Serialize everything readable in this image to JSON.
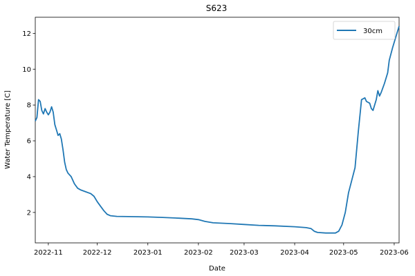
{
  "chart_data": {
    "type": "line",
    "title": "S623",
    "xlabel": "Date",
    "ylabel": "Water Temperature [C]",
    "x_ticks": [
      "2022-11",
      "2022-12",
      "2023-01",
      "2023-02",
      "2023-03",
      "2023-04",
      "2023-05",
      "2023-06"
    ],
    "x_tick_dates": [
      "2022-11-01",
      "2022-12-01",
      "2023-01-01",
      "2023-02-01",
      "2023-03-01",
      "2023-04-01",
      "2023-05-01",
      "2023-06-01"
    ],
    "y_ticks": [
      2,
      4,
      6,
      8,
      10,
      12
    ],
    "xlim": [
      "2022-10-24",
      "2023-06-04"
    ],
    "ylim": [
      0.3,
      12.9
    ],
    "grid": false,
    "legend_position": "upper right",
    "series": [
      {
        "name": "30cm",
        "color": "#1f77b4",
        "points": [
          [
            "2022-10-24",
            7.1
          ],
          [
            "2022-10-25",
            7.3
          ],
          [
            "2022-10-26",
            8.3
          ],
          [
            "2022-10-27",
            8.2
          ],
          [
            "2022-10-28",
            7.7
          ],
          [
            "2022-10-29",
            7.5
          ],
          [
            "2022-10-30",
            7.8
          ],
          [
            "2022-10-31",
            7.6
          ],
          [
            "2022-11-01",
            7.45
          ],
          [
            "2022-11-02",
            7.6
          ],
          [
            "2022-11-03",
            7.9
          ],
          [
            "2022-11-04",
            7.6
          ],
          [
            "2022-11-05",
            6.9
          ],
          [
            "2022-11-06",
            6.6
          ],
          [
            "2022-11-07",
            6.3
          ],
          [
            "2022-11-08",
            6.4
          ],
          [
            "2022-11-09",
            6.1
          ],
          [
            "2022-11-10",
            5.5
          ],
          [
            "2022-11-11",
            4.8
          ],
          [
            "2022-11-12",
            4.4
          ],
          [
            "2022-11-13",
            4.2
          ],
          [
            "2022-11-15",
            4.0
          ],
          [
            "2022-11-17",
            3.6
          ],
          [
            "2022-11-19",
            3.35
          ],
          [
            "2022-11-21",
            3.25
          ],
          [
            "2022-11-24",
            3.15
          ],
          [
            "2022-11-27",
            3.05
          ],
          [
            "2022-11-29",
            2.9
          ],
          [
            "2022-12-01",
            2.6
          ],
          [
            "2022-12-03",
            2.35
          ],
          [
            "2022-12-05",
            2.1
          ],
          [
            "2022-12-07",
            1.9
          ],
          [
            "2022-12-09",
            1.82
          ],
          [
            "2022-12-13",
            1.78
          ],
          [
            "2022-12-20",
            1.77
          ],
          [
            "2023-01-01",
            1.75
          ],
          [
            "2023-01-10",
            1.72
          ],
          [
            "2023-01-20",
            1.68
          ],
          [
            "2023-01-28",
            1.64
          ],
          [
            "2023-02-01",
            1.6
          ],
          [
            "2023-02-05",
            1.5
          ],
          [
            "2023-02-10",
            1.42
          ],
          [
            "2023-02-20",
            1.38
          ],
          [
            "2023-03-01",
            1.33
          ],
          [
            "2023-03-10",
            1.28
          ],
          [
            "2023-03-20",
            1.25
          ],
          [
            "2023-04-01",
            1.2
          ],
          [
            "2023-04-08",
            1.15
          ],
          [
            "2023-04-11",
            1.1
          ],
          [
            "2023-04-13",
            0.95
          ],
          [
            "2023-04-15",
            0.88
          ],
          [
            "2023-04-20",
            0.85
          ],
          [
            "2023-04-26",
            0.85
          ],
          [
            "2023-04-28",
            0.95
          ],
          [
            "2023-04-30",
            1.3
          ],
          [
            "2023-05-02",
            2.0
          ],
          [
            "2023-05-04",
            3.1
          ],
          [
            "2023-05-06",
            3.8
          ],
          [
            "2023-05-08",
            4.5
          ],
          [
            "2023-05-10",
            6.5
          ],
          [
            "2023-05-12",
            8.3
          ],
          [
            "2023-05-14",
            8.4
          ],
          [
            "2023-05-15",
            8.2
          ],
          [
            "2023-05-17",
            8.1
          ],
          [
            "2023-05-18",
            7.8
          ],
          [
            "2023-05-19",
            7.7
          ],
          [
            "2023-05-21",
            8.3
          ],
          [
            "2023-05-22",
            8.8
          ],
          [
            "2023-05-23",
            8.5
          ],
          [
            "2023-05-24",
            8.7
          ],
          [
            "2023-05-26",
            9.2
          ],
          [
            "2023-05-28",
            9.8
          ],
          [
            "2023-05-29",
            10.5
          ],
          [
            "2023-05-31",
            11.2
          ],
          [
            "2023-06-02",
            11.8
          ],
          [
            "2023-06-04",
            12.4
          ]
        ]
      }
    ]
  }
}
